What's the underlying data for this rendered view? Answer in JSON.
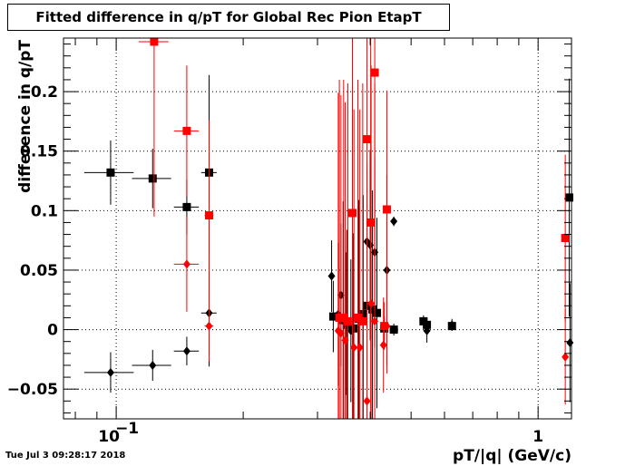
{
  "chart_data": {
    "type": "scatter",
    "title": "Fitted difference in q/pT for Global Rec Pion EtapT",
    "xlabel": "pT/|q| (GeV/c)",
    "ylabel": "difference in q/pT",
    "x_scale": "log",
    "xlim": [
      0.075,
      1.2
    ],
    "ylim": [
      -0.075,
      0.245
    ],
    "grid": true,
    "y_ticks": [
      {
        "value": -0.05,
        "label": "−0.05"
      },
      {
        "value": 0,
        "label": "0"
      },
      {
        "value": 0.05,
        "label": "0.05"
      },
      {
        "value": 0.1,
        "label": "0.1"
      },
      {
        "value": 0.15,
        "label": "0.15"
      },
      {
        "value": 0.2,
        "label": "0.2"
      }
    ],
    "x_ticks": [
      {
        "value": 0.1,
        "label_base": "10",
        "label_exp": "−1"
      },
      {
        "value": 1,
        "label_base": "1",
        "label_exp": ""
      }
    ],
    "series": [
      {
        "color": "#000000",
        "marker": "square",
        "points": [
          {
            "x": 0.097,
            "y": 0.132,
            "xerr": 0.013,
            "yerr": 0.027
          },
          {
            "x": 0.122,
            "y": 0.127,
            "xerr": 0.013,
            "yerr": 0.025
          },
          {
            "x": 0.147,
            "y": 0.103,
            "xerr": 0.01,
            "yerr": 0.023
          },
          {
            "x": 0.166,
            "y": 0.132,
            "xerr": 0.007,
            "yerr": 0.082
          },
          {
            "x": 0.327,
            "y": 0.011,
            "xerr": 0.005,
            "yerr": 0.03
          },
          {
            "x": 0.345,
            "y": 0.008,
            "xerr": 0.004,
            "yerr": 0.1
          },
          {
            "x": 0.352,
            "y": 0.004,
            "xerr": 0.004,
            "yerr": 0.08
          },
          {
            "x": 0.365,
            "y": 0.001,
            "xerr": 0.004,
            "yerr": 0.08
          },
          {
            "x": 0.376,
            "y": 0.009,
            "xerr": 0.004,
            "yerr": 0.1
          },
          {
            "x": 0.385,
            "y": 0.013,
            "xerr": 0.004,
            "yerr": 0.1
          },
          {
            "x": 0.393,
            "y": 0.02,
            "xerr": 0.004,
            "yerr": 0.1
          },
          {
            "x": 0.405,
            "y": 0.017,
            "xerr": 0.004,
            "yerr": 0.1
          },
          {
            "x": 0.415,
            "y": 0.014,
            "xerr": 0.004,
            "yerr": 0.08
          },
          {
            "x": 0.432,
            "y": 0.001,
            "xerr": 0.004,
            "yerr": 0.01
          },
          {
            "x": 0.455,
            "y": 0.0,
            "xerr": 0.008,
            "yerr": 0.005
          },
          {
            "x": 0.535,
            "y": 0.007,
            "xerr": 0.01,
            "yerr": 0.005
          },
          {
            "x": 0.545,
            "y": 0.004,
            "xerr": 0.01,
            "yerr": 0.005
          },
          {
            "x": 0.625,
            "y": 0.003,
            "xerr": 0.01,
            "yerr": 0.004
          },
          {
            "x": 1.185,
            "y": 0.111,
            "xerr": 0.0,
            "yerr": 0.1
          }
        ]
      },
      {
        "color": "#000000",
        "marker": "diamond",
        "points": [
          {
            "x": 0.097,
            "y": -0.036,
            "xerr": 0.013,
            "yerr": 0.017
          },
          {
            "x": 0.122,
            "y": -0.03,
            "xerr": 0.013,
            "yerr": 0.013
          },
          {
            "x": 0.147,
            "y": -0.018,
            "xerr": 0.01,
            "yerr": 0.012
          },
          {
            "x": 0.166,
            "y": 0.014,
            "xerr": 0.007,
            "yerr": 0.045
          },
          {
            "x": 0.324,
            "y": 0.045,
            "xerr": 0.004,
            "yerr": 0.03
          },
          {
            "x": 0.336,
            "y": 0.013,
            "xerr": 0.003,
            "yerr": 0.06
          },
          {
            "x": 0.341,
            "y": 0.029,
            "xerr": 0.003,
            "yerr": 0.06
          },
          {
            "x": 0.35,
            "y": 0.005,
            "xerr": 0.003,
            "yerr": 0.06
          },
          {
            "x": 0.36,
            "y": -0.001,
            "xerr": 0.003,
            "yerr": 0.06
          },
          {
            "x": 0.393,
            "y": 0.074,
            "xerr": 0.003,
            "yerr": 0.06
          },
          {
            "x": 0.4,
            "y": 0.071,
            "xerr": 0.003,
            "yerr": 0.08
          },
          {
            "x": 0.41,
            "y": 0.065,
            "xerr": 0.003,
            "yerr": 0.08
          },
          {
            "x": 0.438,
            "y": 0.05,
            "xerr": 0.003,
            "yerr": 0.08
          },
          {
            "x": 0.455,
            "y": 0.091,
            "xerr": 0.003,
            "yerr": 0.004
          },
          {
            "x": 0.545,
            "y": -0.001,
            "xerr": 0.01,
            "yerr": 0.01
          },
          {
            "x": 0.625,
            "y": 0.004,
            "xerr": 0.01,
            "yerr": 0.005
          },
          {
            "x": 1.19,
            "y": -0.011,
            "xerr": 0.0,
            "yerr": 0.05
          }
        ]
      },
      {
        "color": "#ff0000",
        "marker": "square",
        "points": [
          {
            "x": 0.123,
            "y": 0.242,
            "xerr": 0.01,
            "yerr": 0.147
          },
          {
            "x": 0.147,
            "y": 0.167,
            "xerr": 0.01,
            "yerr": 0.055
          },
          {
            "x": 0.166,
            "y": 0.096,
            "xerr": 0.004,
            "yerr": 0.08
          },
          {
            "x": 0.338,
            "y": 0.01,
            "xerr": 0.003,
            "yerr": 0.2
          },
          {
            "x": 0.346,
            "y": 0.01,
            "xerr": 0.003,
            "yerr": 0.2
          },
          {
            "x": 0.354,
            "y": 0.007,
            "xerr": 0.003,
            "yerr": 0.2
          },
          {
            "x": 0.363,
            "y": 0.098,
            "xerr": 0.003,
            "yerr": 0.2
          },
          {
            "x": 0.374,
            "y": 0.01,
            "xerr": 0.003,
            "yerr": 0.2
          },
          {
            "x": 0.384,
            "y": 0.007,
            "xerr": 0.003,
            "yerr": 0.2
          },
          {
            "x": 0.393,
            "y": 0.16,
            "xerr": 0.003,
            "yerr": 0.2
          },
          {
            "x": 0.401,
            "y": 0.09,
            "xerr": 0.003,
            "yerr": 0.2
          },
          {
            "x": 0.41,
            "y": 0.216,
            "xerr": 0.003,
            "yerr": 0.2
          },
          {
            "x": 0.432,
            "y": 0.003,
            "xerr": 0.003,
            "yerr": 0.02
          },
          {
            "x": 0.438,
            "y": 0.101,
            "xerr": 0.003,
            "yerr": 0.1
          },
          {
            "x": 1.16,
            "y": 0.077,
            "xerr": 0.0,
            "yerr": 0.07
          }
        ]
      },
      {
        "color": "#ff0000",
        "marker": "diamond",
        "points": [
          {
            "x": 0.147,
            "y": 0.055,
            "xerr": 0.01,
            "yerr": 0.04
          },
          {
            "x": 0.166,
            "y": 0.003,
            "xerr": 0.004,
            "yerr": 0.03
          },
          {
            "x": 0.336,
            "y": -0.001,
            "xerr": 0.003,
            "yerr": 0.2
          },
          {
            "x": 0.341,
            "y": -0.003,
            "xerr": 0.003,
            "yerr": 0.2
          },
          {
            "x": 0.349,
            "y": -0.009,
            "xerr": 0.003,
            "yerr": 0.2
          },
          {
            "x": 0.366,
            "y": -0.015,
            "xerr": 0.003,
            "yerr": 0.2
          },
          {
            "x": 0.378,
            "y": -0.015,
            "xerr": 0.003,
            "yerr": 0.2
          },
          {
            "x": 0.393,
            "y": -0.06,
            "xerr": 0.003,
            "yerr": 0.2
          },
          {
            "x": 0.402,
            "y": 0.022,
            "xerr": 0.003,
            "yerr": 0.2
          },
          {
            "x": 0.41,
            "y": 0.007,
            "xerr": 0.003,
            "yerr": 0.2
          },
          {
            "x": 0.43,
            "y": -0.013,
            "xerr": 0.003,
            "yerr": 0.04
          },
          {
            "x": 0.438,
            "y": 0.003,
            "xerr": 0.003,
            "yerr": 0.04
          },
          {
            "x": 1.16,
            "y": -0.023,
            "xerr": 0.0,
            "yerr": 0.04
          }
        ]
      }
    ]
  },
  "footer": {
    "timestamp": "Tue Jul  3 09:28:17 2018"
  }
}
